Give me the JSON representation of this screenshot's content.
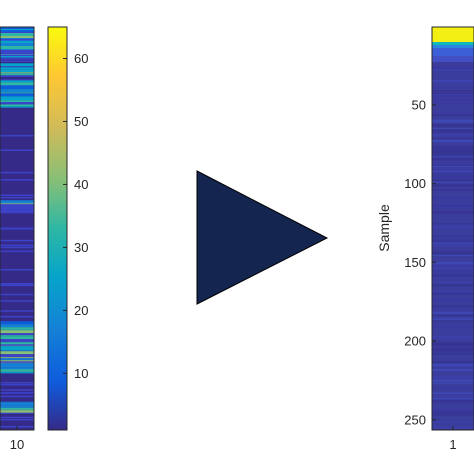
{
  "chart_data": [
    {
      "type": "heatmap",
      "name": "left-heatmap-partial",
      "xtick_labels": [
        "10"
      ],
      "colormap": "parula",
      "note_rows_high": [
        [
          0,
          0.08
        ],
        [
          0.09,
          0.12
        ],
        [
          0.13,
          0.2
        ],
        [
          0.43,
          0.46
        ],
        [
          0.73,
          0.86
        ],
        [
          0.93,
          0.96
        ]
      ]
    },
    {
      "type": "colorbar",
      "colormap": "parula",
      "ticks": [
        10,
        20,
        30,
        40,
        50,
        60
      ],
      "range": [
        1,
        65
      ]
    },
    {
      "type": "heatmap",
      "name": "right-heatmap",
      "ylabel": "Sample",
      "yticks": [
        50,
        100,
        150,
        200,
        250
      ],
      "ylim": [
        1,
        256
      ],
      "xtick_labels": [
        "1"
      ],
      "colormap": "parula"
    }
  ],
  "arrow": {
    "fill": "#14254f"
  }
}
